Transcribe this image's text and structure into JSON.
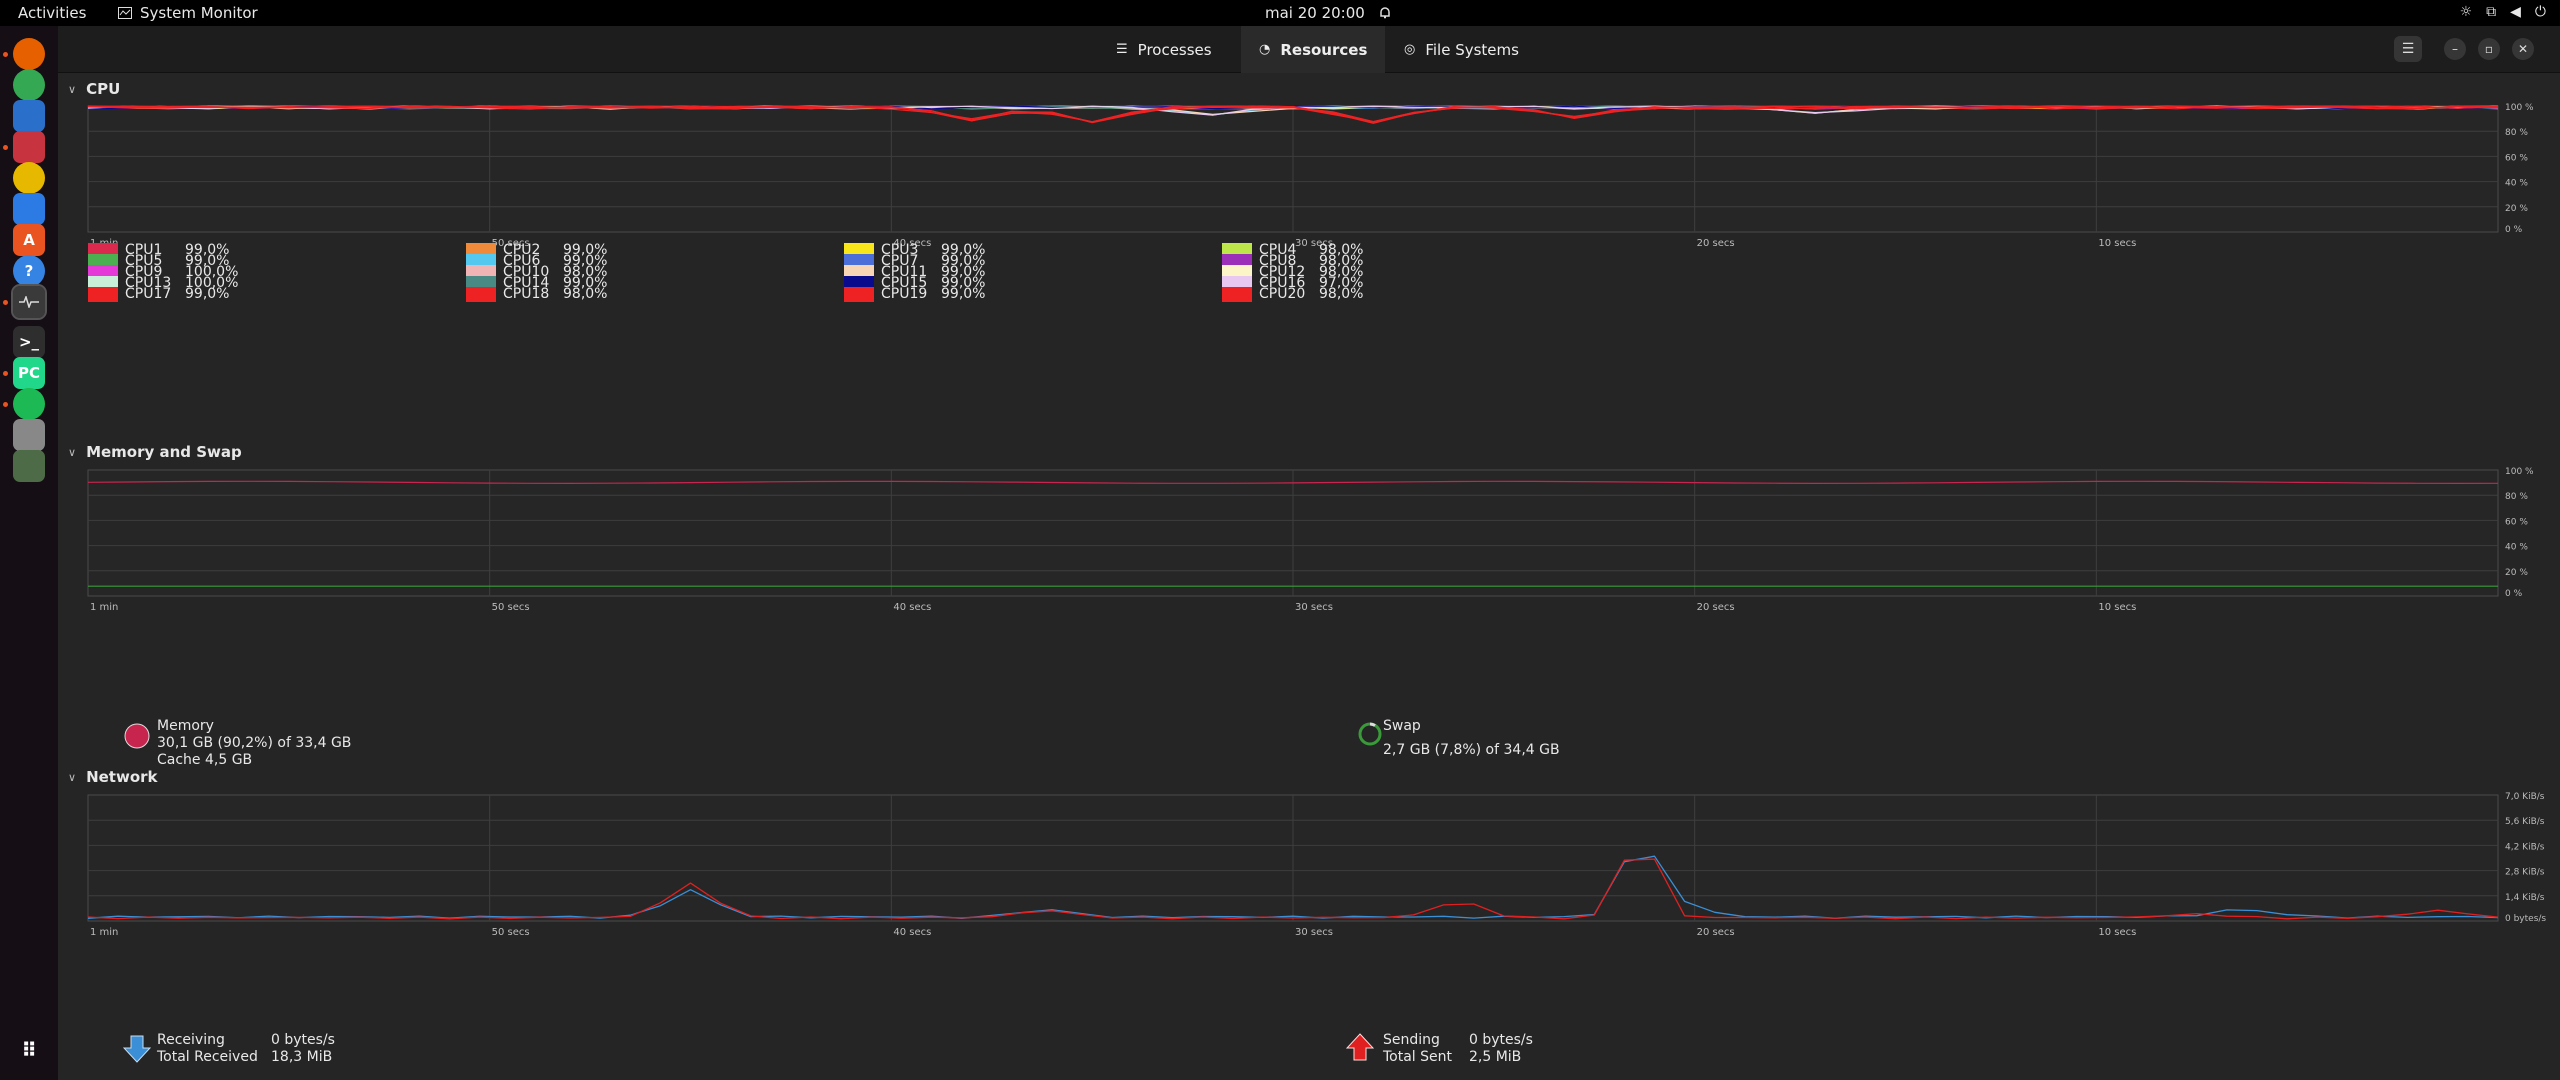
{
  "topbar": {
    "activities": "Activities",
    "app_name": "System Monitor",
    "clock": "mai 20  20:00"
  },
  "dock": {
    "items": [
      {
        "name": "firefox-icon",
        "color": "#e66000",
        "label": "",
        "active": true
      },
      {
        "name": "chrome-icon",
        "color": "#34a853",
        "label": "",
        "active": false
      },
      {
        "name": "thunderbird-icon",
        "color": "#2a6fc9",
        "label": "",
        "active": false
      },
      {
        "name": "files-icon",
        "color": "#c7343f",
        "label": "",
        "active": true
      },
      {
        "name": "rhythmbox-icon",
        "color": "#e6b800",
        "label": "",
        "active": false
      },
      {
        "name": "writer-icon",
        "color": "#2c7be5",
        "label": "",
        "active": false
      },
      {
        "name": "app-center-icon",
        "color": "#e95420",
        "label": "A",
        "active": false
      },
      {
        "name": "help-icon",
        "color": "#3584e4",
        "label": "?",
        "active": false
      },
      {
        "name": "system-monitor-icon",
        "color": "#3a3a3a",
        "label": "",
        "active": true
      },
      {
        "name": "terminal-icon",
        "color": "#2e2e2e",
        "label": ">_",
        "active": false
      },
      {
        "name": "pycharm-icon",
        "color": "#21d789",
        "label": "PC",
        "active": true
      },
      {
        "name": "spotify-icon",
        "color": "#1db954",
        "label": "",
        "active": true
      },
      {
        "name": "drive-icon",
        "color": "#888888",
        "label": "",
        "active": false
      },
      {
        "name": "trash-icon",
        "color": "#4d6b47",
        "label": "",
        "active": false
      }
    ]
  },
  "header": {
    "tabs": [
      "Processes",
      "Resources",
      "File Systems"
    ],
    "active_tab": "Resources"
  },
  "cpu": {
    "title": "CPU",
    "x_labels": [
      "1 min",
      "50 secs",
      "40 secs",
      "30 secs",
      "20 secs",
      "10 secs"
    ],
    "y_labels": [
      "100 %",
      "80 %",
      "60 %",
      "40 %",
      "20 %",
      "0 %"
    ],
    "legend": [
      {
        "name": "CPU1",
        "value": "99,0%",
        "color": "#dc2a4f"
      },
      {
        "name": "CPU2",
        "value": "99,0%",
        "color": "#f08a3b"
      },
      {
        "name": "CPU3",
        "value": "99,0%",
        "color": "#f8e51a"
      },
      {
        "name": "CPU4",
        "value": "98,0%",
        "color": "#bde64a"
      },
      {
        "name": "CPU5",
        "value": "99,0%",
        "color": "#4caf50"
      },
      {
        "name": "CPU6",
        "value": "99,0%",
        "color": "#55c8f0"
      },
      {
        "name": "CPU7",
        "value": "99,0%",
        "color": "#4b6ed8"
      },
      {
        "name": "CPU8",
        "value": "98,0%",
        "color": "#9c2fb8"
      },
      {
        "name": "CPU9",
        "value": "100,0%",
        "color": "#e63ad8"
      },
      {
        "name": "CPU10",
        "value": "98,0%",
        "color": "#f0b4b4"
      },
      {
        "name": "CPU11",
        "value": "99,0%",
        "color": "#f7d5b5"
      },
      {
        "name": "CPU12",
        "value": "98,0%",
        "color": "#fbf5c8"
      },
      {
        "name": "CPU13",
        "value": "100,0%",
        "color": "#c8f0d8"
      },
      {
        "name": "CPU14",
        "value": "99,0%",
        "color": "#4a8a85"
      },
      {
        "name": "CPU15",
        "value": "99,0%",
        "color": "#0a0a8c"
      },
      {
        "name": "CPU16",
        "value": "97,0%",
        "color": "#e8c8f0"
      },
      {
        "name": "CPU17",
        "value": "99,0%",
        "color": "#ee2222"
      },
      {
        "name": "CPU18",
        "value": "98,0%",
        "color": "#ee2222"
      },
      {
        "name": "CPU19",
        "value": "99,0%",
        "color": "#ee2222"
      },
      {
        "name": "CPU20",
        "value": "98,0%",
        "color": "#ee2222"
      }
    ]
  },
  "memory": {
    "title": "Memory and Swap",
    "x_labels": [
      "1 min",
      "50 secs",
      "40 secs",
      "30 secs",
      "20 secs",
      "10 secs"
    ],
    "y_labels": [
      "100 %",
      "80 %",
      "60 %",
      "40 %",
      "20 %",
      "0 %"
    ],
    "mem_label": "Memory",
    "mem_value": "30,1 GB (90,2%) of 33,4 GB",
    "cache": "Cache 4,5 GB",
    "mem_color": "#c8254e",
    "mem_percent": 90.2,
    "swap_label": "Swap",
    "swap_value": "2,7 GB (7,8%) of 34,4 GB",
    "swap_color": "#3a9a3a",
    "swap_percent": 7.8
  },
  "network": {
    "title": "Network",
    "x_labels": [
      "1 min",
      "50 secs",
      "40 secs",
      "30 secs",
      "20 secs",
      "10 secs"
    ],
    "y_labels": [
      "7,0 KiB/s",
      "5,6 KiB/s",
      "4,2 KiB/s",
      "2,8 KiB/s",
      "1,4 KiB/s",
      "0 bytes/s"
    ],
    "recv_label": "Receiving",
    "recv_value": "0 bytes/s",
    "total_recv_label": "Total Received",
    "total_recv_value": "18,3 MiB",
    "send_label": "Sending",
    "send_value": "0 bytes/s",
    "total_sent_label": "Total Sent",
    "total_sent_value": "2,5 MiB",
    "recv_color": "#3b8fd6",
    "send_color": "#e02020"
  }
}
